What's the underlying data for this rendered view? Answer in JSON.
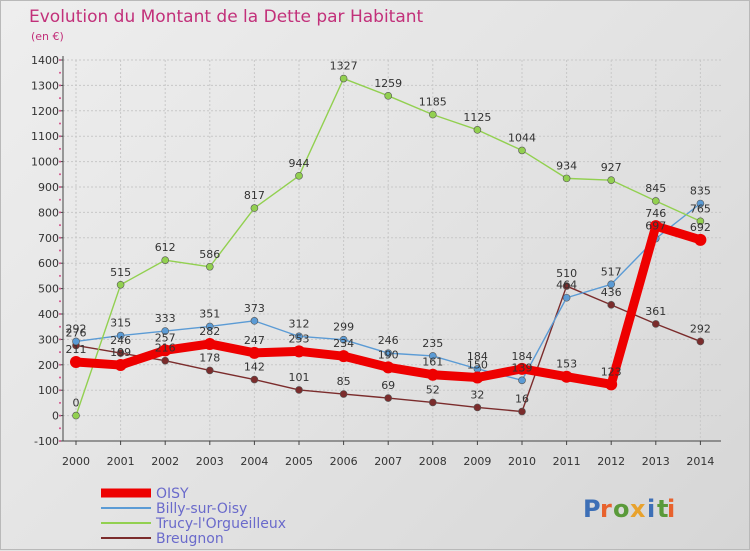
{
  "chart_data": {
    "type": "line",
    "title": "Evolution du Montant de la Dette par Habitant",
    "subtitle": "(en €)",
    "x": [
      2000,
      2001,
      2002,
      2003,
      2004,
      2005,
      2006,
      2007,
      2008,
      2009,
      2010,
      2011,
      2012,
      2013,
      2014
    ],
    "ylim": [
      -100,
      1400
    ],
    "yticks": [
      -100,
      0,
      100,
      200,
      300,
      400,
      500,
      600,
      700,
      800,
      900,
      1000,
      1100,
      1200,
      1300,
      1400
    ],
    "grid": true,
    "legend_position": "bottom-left",
    "series": [
      {
        "name": "OISY",
        "color": "#ee0000",
        "values": [
          211,
          199,
          257,
          282,
          247,
          253,
          234,
          190,
          161,
          150,
          184,
          153,
          123,
          746,
          692
        ]
      },
      {
        "name": "Billy-sur-Oisy",
        "color": "#5b9bd5",
        "values": [
          292,
          315,
          333,
          351,
          373,
          312,
          299,
          246,
          235,
          184,
          139,
          464,
          517,
          697,
          835
        ]
      },
      {
        "name": "Trucy-l'Orgueilleux",
        "color": "#92d050",
        "values": [
          0,
          515,
          612,
          586,
          817,
          944,
          1327,
          1259,
          1185,
          1125,
          1044,
          934,
          927,
          845,
          765
        ]
      },
      {
        "name": "Breugnon",
        "color": "#7b2c2c",
        "values": [
          276,
          246,
          216,
          178,
          142,
          101,
          85,
          69,
          52,
          32,
          16,
          510,
          436,
          361,
          292
        ]
      }
    ]
  },
  "branding": {
    "logo_text": "Proxiti"
  }
}
